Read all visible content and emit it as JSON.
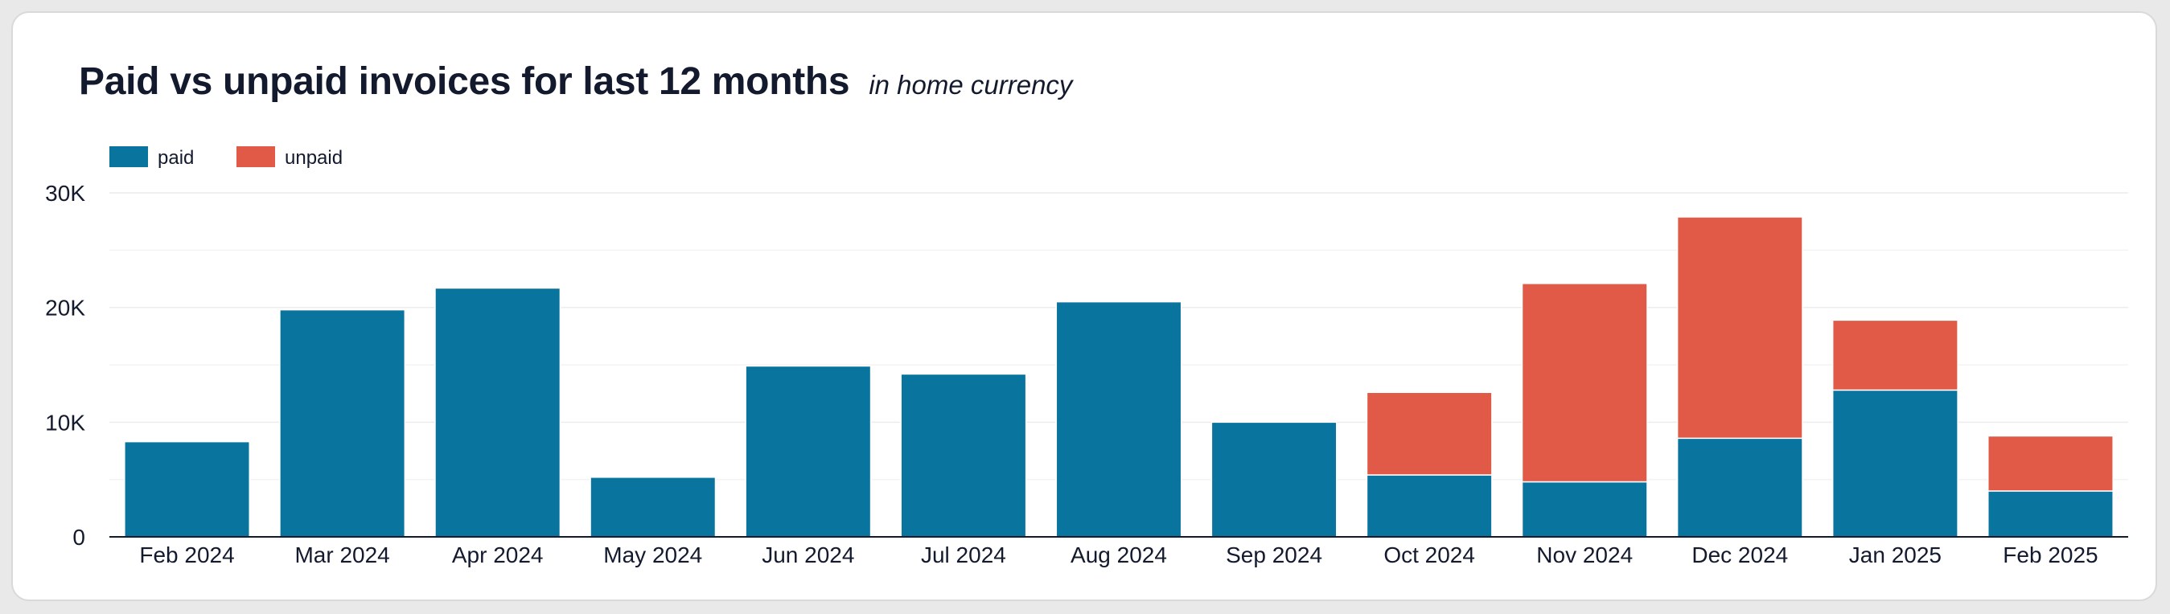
{
  "header": {
    "title": "Paid vs unpaid invoices for last 12 months",
    "subtitle": "in home currency"
  },
  "chart_data": {
    "type": "bar",
    "stacked": true,
    "categories": [
      "Feb 2024",
      "Mar 2024",
      "Apr 2024",
      "May 2024",
      "Jun 2024",
      "Jul 2024",
      "Aug 2024",
      "Sep 2024",
      "Oct 2024",
      "Nov 2024",
      "Dec 2024",
      "Jan 2025",
      "Feb 2025"
    ],
    "series": [
      {
        "name": "paid",
        "color": "#09759f",
        "values": [
          8300,
          19800,
          21700,
          5200,
          14900,
          14200,
          20500,
          10000,
          5400,
          4800,
          8600,
          12800,
          4000
        ]
      },
      {
        "name": "unpaid",
        "color": "#e05a47",
        "values": [
          0,
          0,
          0,
          0,
          0,
          0,
          0,
          0,
          7200,
          17300,
          19300,
          6100,
          4800
        ]
      }
    ],
    "yticks": [
      0,
      10000,
      20000,
      30000
    ],
    "ytick_labels": [
      "0",
      "10K",
      "20K",
      "30K"
    ],
    "ylim": [
      0,
      30000
    ],
    "grid": true,
    "legend": "top-left",
    "xlabel": "",
    "ylabel": ""
  }
}
